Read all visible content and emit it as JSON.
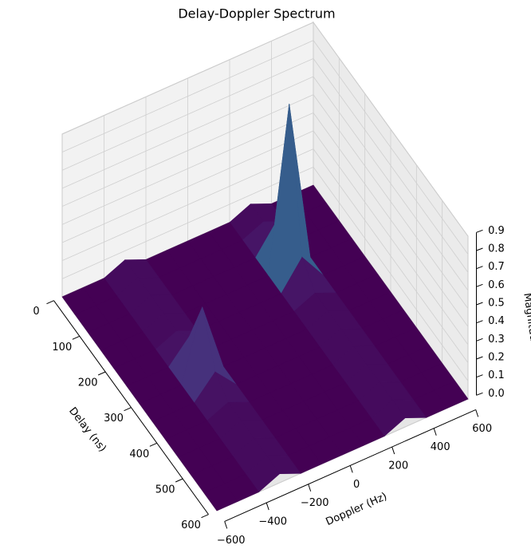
{
  "chart_data": {
    "type": "surface",
    "title": "Delay-Doppler Spectrum",
    "xlabel": "Delay (ns)",
    "ylabel": "Doppler (Hz)",
    "zlabel": "Magnitude",
    "x": [
      0,
      50,
      100,
      150,
      200,
      250,
      300,
      350,
      400,
      450,
      500,
      550,
      600
    ],
    "y": [
      -600,
      -500,
      -400,
      -300,
      -200,
      -100,
      0,
      100,
      200,
      300,
      400,
      500,
      600
    ],
    "z": [
      [
        0,
        0,
        0,
        0.05,
        0,
        0,
        0,
        0,
        0,
        0.05,
        0,
        0,
        0
      ],
      [
        0,
        0,
        0,
        0.05,
        0,
        0,
        0,
        0,
        0,
        0.05,
        0,
        0,
        0
      ],
      [
        0,
        0,
        0,
        0.05,
        0,
        0,
        0,
        0,
        0,
        0.15,
        0,
        0,
        0
      ],
      [
        0,
        0,
        0,
        0.05,
        0,
        0,
        0,
        0,
        0,
        0.9,
        0,
        0,
        0
      ],
      [
        0,
        0,
        0,
        0.05,
        0,
        0,
        0,
        0,
        0,
        0.15,
        0,
        0,
        0
      ],
      [
        0,
        0,
        0,
        0.12,
        0,
        0,
        0,
        0,
        0,
        0.05,
        0,
        0,
        0
      ],
      [
        0,
        0,
        0,
        0.38,
        0,
        0,
        0,
        0,
        0,
        0.05,
        0,
        0,
        0
      ],
      [
        0,
        0,
        0,
        0.12,
        0,
        0,
        0,
        0,
        0,
        0.05,
        0,
        0,
        0
      ],
      [
        0,
        0,
        0,
        0.05,
        0,
        0,
        0,
        0,
        0,
        0.05,
        0,
        0,
        0
      ],
      [
        0,
        0,
        0,
        0.05,
        0,
        0,
        0,
        0,
        0,
        0.05,
        0,
        0,
        0
      ],
      [
        0,
        0,
        0,
        0.05,
        0,
        0,
        0,
        0,
        0,
        0.05,
        0,
        0,
        0
      ],
      [
        0,
        0,
        0,
        0.05,
        0,
        0,
        0,
        0,
        0,
        0.05,
        0,
        0,
        0
      ],
      [
        0,
        0,
        0,
        0.05,
        0,
        0,
        0,
        0,
        0,
        0.05,
        0,
        0,
        0
      ]
    ],
    "colormap": "viridis",
    "xlim": [
      0,
      600
    ],
    "xticks": [
      0,
      100,
      200,
      300,
      400,
      500,
      600
    ],
    "ylim": [
      -600,
      600
    ],
    "yticks": [
      {
        "value": -600,
        "label": "−600"
      },
      {
        "value": -400,
        "label": "−400"
      },
      {
        "value": -200,
        "label": "−200"
      },
      0,
      200,
      400,
      600
    ],
    "zlim": [
      0,
      0.9
    ],
    "zticks": [
      {
        "value": 0,
        "label": "0.0"
      },
      0.1,
      0.2,
      0.3,
      0.4,
      0.5,
      0.6,
      0.7,
      0.8,
      0.9
    ],
    "grid": true
  }
}
